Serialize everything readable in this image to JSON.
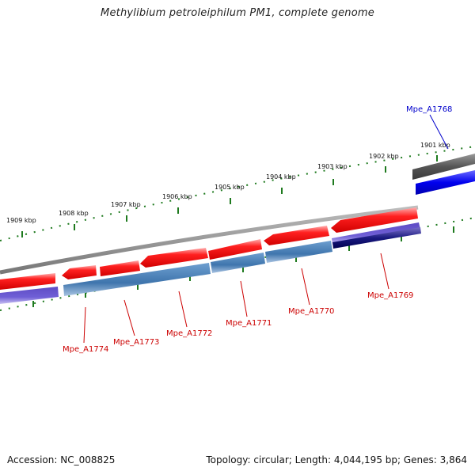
{
  "title": "Methylibium petroleiphilum PM1, complete genome",
  "footer": {
    "accession": "Accession: NC_008825",
    "summary": "Topology: circular; Length: 4,044,195 bp; Genes: 3,864"
  },
  "ticks": [
    {
      "label": "1909 kbp"
    },
    {
      "label": "1908 kbp"
    },
    {
      "label": "1907 kbp"
    },
    {
      "label": "1906 kbp"
    },
    {
      "label": "1905 kbp"
    },
    {
      "label": "1904 kbp"
    },
    {
      "label": "1903 kbp"
    },
    {
      "label": "1902 kbp"
    },
    {
      "label": "1901 kbp"
    }
  ],
  "genes": [
    {
      "label": "Mpe_A1768",
      "color": "#0000cc"
    },
    {
      "label": "Mpe_A1769",
      "color": "#cc0000"
    },
    {
      "label": "Mpe_A1770",
      "color": "#cc0000"
    },
    {
      "label": "Mpe_A1771",
      "color": "#cc0000"
    },
    {
      "label": "Mpe_A1772",
      "color": "#cc0000"
    },
    {
      "label": "Mpe_A1773",
      "color": "#cc0000"
    },
    {
      "label": "Mpe_A1774",
      "color": "#cc0000"
    }
  ],
  "colors": {
    "cds_forward": "#ff1a1a",
    "cds_reverse": "#ff1a1a",
    "blue_gene": "#0000ee",
    "steelblue_feature": "#4a7fb5",
    "purple_feature": "#6a5acd",
    "navy_feature": "#1a1a7a",
    "backbone": "#8a8a8a",
    "dark_backbone": "#555555",
    "ticks": "#1e7a1e"
  }
}
